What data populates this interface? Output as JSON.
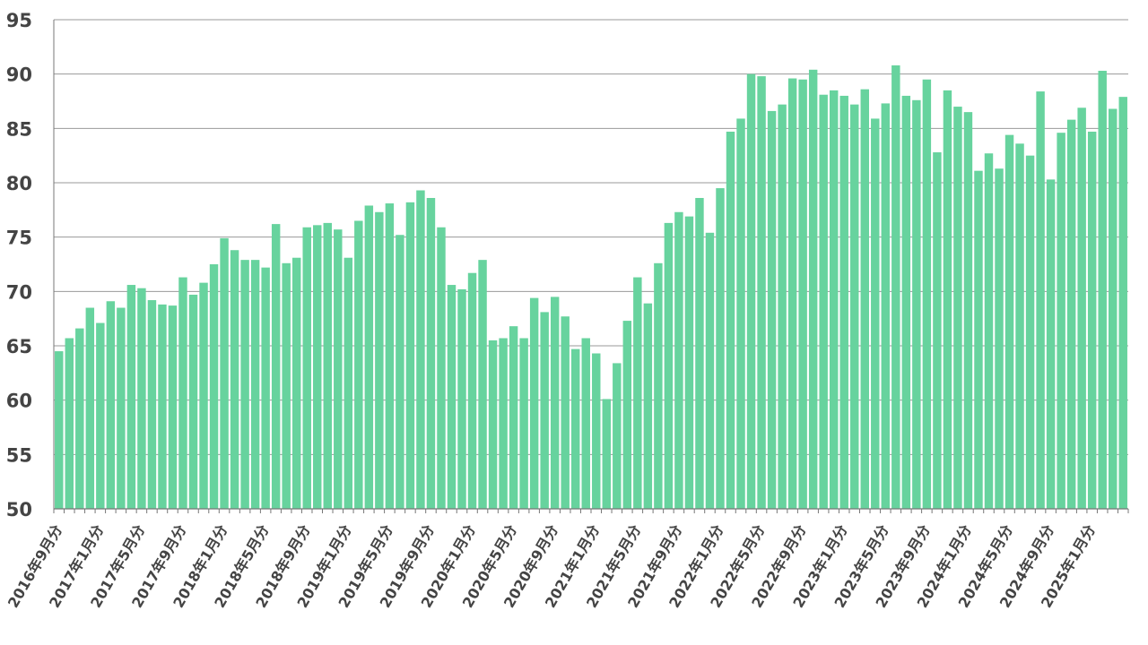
{
  "chart_data": {
    "type": "bar",
    "title": "",
    "xlabel": "",
    "ylabel": "",
    "ylim": [
      50,
      95
    ],
    "yticks": [
      "50",
      "55",
      "60",
      "65",
      "70",
      "75",
      "80",
      "85",
      "90",
      "95"
    ],
    "grid": "horizontal",
    "bar_color": "#67D39E",
    "x_tick_labels": [
      "2016年9月分",
      "2017年1月分",
      "2017年5月分",
      "2017年9月分",
      "2018年1月分",
      "2018年5月分",
      "2018年9月分",
      "2019年1月分",
      "2019年5月分",
      "2019年9月分",
      "2020年1月分",
      "2020年5月分",
      "2020年9月分",
      "2021年1月分",
      "2021年5月分",
      "2021年9月分",
      "2022年1月分",
      "2022年5月分",
      "2022年9月分",
      "2023年1月分",
      "2023年5月分",
      "2023年9月分",
      "2024年1月分",
      "2024年5月分",
      "2024年9月分",
      "2025年1月分"
    ],
    "x_tick_label_every": 4,
    "values": [
      64.5,
      65.7,
      66.6,
      68.5,
      67.1,
      69.1,
      68.5,
      70.6,
      70.3,
      69.2,
      68.8,
      68.7,
      71.3,
      69.7,
      70.8,
      72.5,
      74.9,
      73.8,
      72.9,
      72.9,
      72.2,
      76.2,
      72.6,
      73.1,
      75.9,
      76.1,
      76.3,
      75.7,
      73.1,
      76.5,
      77.9,
      77.3,
      78.1,
      75.2,
      78.2,
      79.3,
      78.6,
      75.9,
      70.6,
      70.2,
      71.7,
      72.9,
      65.5,
      65.7,
      66.8,
      65.7,
      69.4,
      68.1,
      69.5,
      67.7,
      64.7,
      65.7,
      64.3,
      60.1,
      63.4,
      67.3,
      71.3,
      68.9,
      72.6,
      76.3,
      77.3,
      76.9,
      78.6,
      75.4,
      79.5,
      84.7,
      85.9,
      90.0,
      89.8,
      86.6,
      87.2,
      89.6,
      89.5,
      90.4,
      88.1,
      88.5,
      88.0,
      87.2,
      88.6,
      85.9,
      87.3,
      90.8,
      88.0,
      87.6,
      89.5,
      82.8,
      88.5,
      87.0,
      86.5,
      81.1,
      82.7,
      81.3,
      84.4,
      83.6,
      82.5,
      88.4,
      80.3,
      84.6,
      85.8,
      86.9,
      84.7,
      90.3,
      86.8,
      87.9
    ]
  }
}
